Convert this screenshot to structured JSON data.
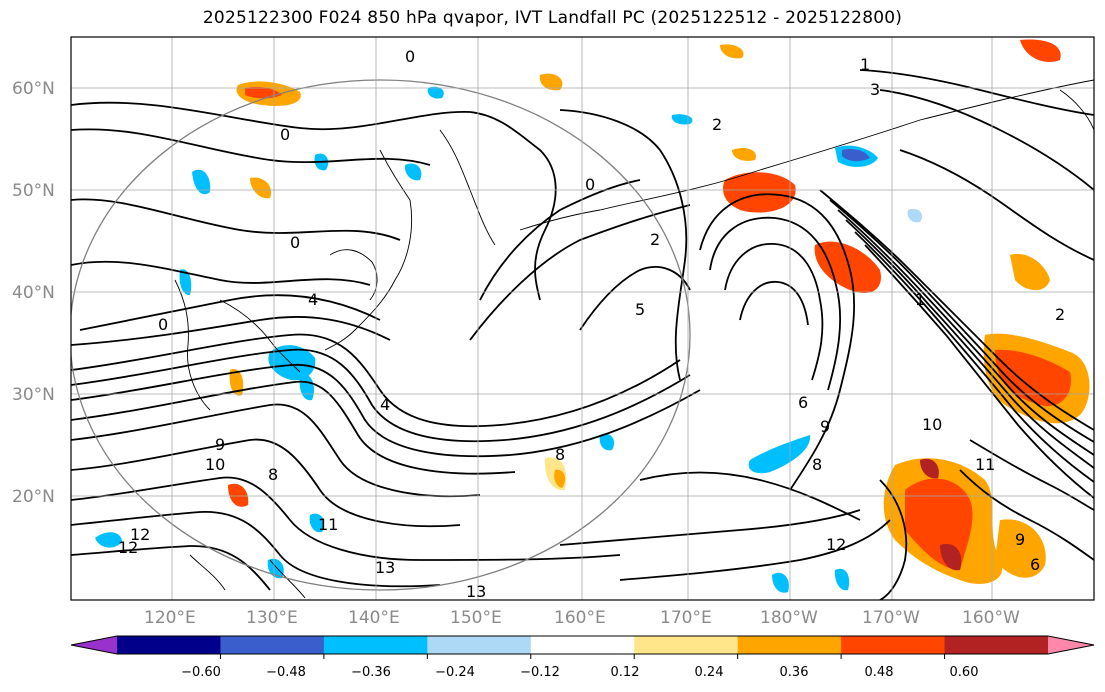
{
  "title": "2025122300 F024 850 hPa qvapor, IVT Landfall PC (2025122512 - 2025122800)",
  "map": {
    "lat_labels": [
      "60°N",
      "50°N",
      "40°N",
      "30°N",
      "20°N"
    ],
    "lon_labels": [
      "120°E",
      "130°E",
      "140°E",
      "150°E",
      "160°E",
      "170°E",
      "180°W",
      "170°W",
      "160°W"
    ],
    "contour_labels": [
      "0",
      "0",
      "0",
      "0",
      "0",
      "1",
      "1",
      "2",
      "2",
      "2",
      "3",
      "4",
      "4",
      "5",
      "6",
      "6",
      "8",
      "8",
      "8",
      "9",
      "9",
      "10",
      "10",
      "11",
      "11",
      "12",
      "12",
      "12",
      "13",
      "13",
      "9"
    ]
  },
  "colorbar": {
    "ticks": [
      "−0.60",
      "−0.48",
      "−0.36",
      "−0.24",
      "−0.12",
      "0.12",
      "0.24",
      "0.36",
      "0.48",
      "0.60"
    ],
    "colors": [
      "#9932cc",
      "#00008b",
      "#3a5fcd",
      "#00bfff",
      "#add8f6",
      "#ffffff",
      "#ffe68a",
      "#ffa500",
      "#ff4500",
      "#b22222",
      "#ff88aa"
    ]
  }
}
